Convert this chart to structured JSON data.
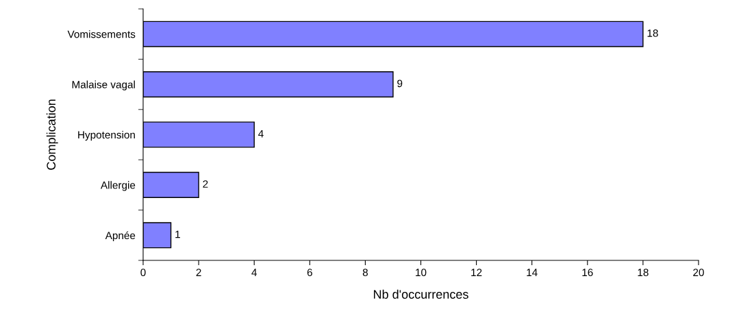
{
  "chart_data": {
    "type": "bar",
    "orientation": "horizontal",
    "xlabel": "Nb d'occurrences",
    "ylabel": "Complication",
    "categories": [
      "Vomissements",
      "Malaise vagal",
      "Hypotension",
      "Allergie",
      "Apnée"
    ],
    "values": [
      18,
      9,
      4,
      2,
      1
    ],
    "color": "#8080ff",
    "xlim": [
      0,
      20
    ],
    "xticks": [
      0,
      2,
      4,
      6,
      8,
      10,
      12,
      14,
      16,
      18,
      20
    ],
    "data_labels": true,
    "grid": false,
    "legend": false
  }
}
